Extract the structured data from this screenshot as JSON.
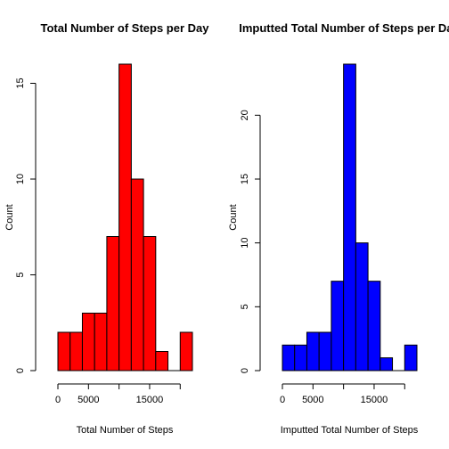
{
  "chart_data": [
    {
      "type": "bar",
      "title": "Total Number of Steps per Day",
      "xlabel": "Total Number of Steps",
      "ylabel": "Count",
      "bar_color": "#ff0000",
      "bin_width": 2000,
      "x": [
        0,
        2000,
        4000,
        6000,
        8000,
        10000,
        12000,
        14000,
        16000,
        18000,
        20000
      ],
      "values": [
        2,
        2,
        3,
        3,
        7,
        16,
        10,
        7,
        1,
        0,
        2
      ],
      "xlim": [
        0,
        22000
      ],
      "ylim": [
        0,
        16
      ],
      "xticks": [
        0,
        5000,
        10000,
        15000,
        20000
      ],
      "xtick_labels": [
        "0",
        "5000",
        "",
        "15000",
        ""
      ],
      "yticks": [
        0,
        5,
        10,
        15
      ],
      "ytick_labels": [
        "0",
        "5",
        "10",
        "15"
      ],
      "grid": false,
      "legend": "none"
    },
    {
      "type": "bar",
      "title": "Imputted Total Number of Steps per Day",
      "xlabel": "Imputted Total Number of Steps",
      "ylabel": "Count",
      "bar_color": "#0000ff",
      "bin_width": 2000,
      "x": [
        0,
        2000,
        4000,
        6000,
        8000,
        10000,
        12000,
        14000,
        16000,
        18000,
        20000
      ],
      "values": [
        2,
        2,
        3,
        3,
        7,
        24,
        10,
        7,
        1,
        0,
        2
      ],
      "xlim": [
        0,
        22000
      ],
      "ylim": [
        0,
        24
      ],
      "xticks": [
        0,
        5000,
        10000,
        15000,
        20000
      ],
      "xtick_labels": [
        "0",
        "5000",
        "",
        "15000",
        ""
      ],
      "yticks": [
        0,
        5,
        10,
        15,
        20
      ],
      "ytick_labels": [
        "0",
        "5",
        "10",
        "15",
        "20"
      ],
      "grid": false,
      "legend": "none"
    }
  ]
}
